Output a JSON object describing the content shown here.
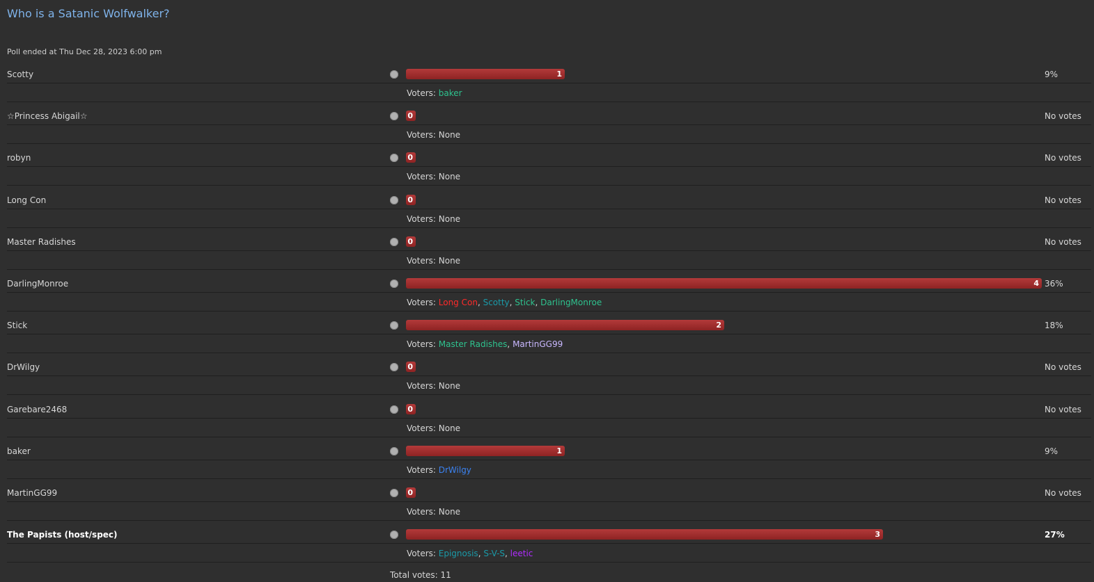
{
  "poll": {
    "title": "Who is a Satanic Wolfwalker?",
    "ended": "Poll ended at Thu Dec 28, 2023 6:00 pm",
    "voters_label": "Voters: ",
    "none_label": "None",
    "total": "Total votes: 11",
    "max_votes": 4,
    "bar_color": "#a12f2f",
    "options": [
      {
        "name": "Scotty",
        "votes": 1,
        "count": "1",
        "pct": "9%",
        "bold": false,
        "voters": [
          {
            "name": "baker",
            "color": "#2ec28e"
          }
        ]
      },
      {
        "name": "☆Princess Abigail☆",
        "votes": 0,
        "count": "0",
        "pct": "No votes",
        "bold": false,
        "voters": []
      },
      {
        "name": "robyn",
        "votes": 0,
        "count": "0",
        "pct": "No votes",
        "bold": false,
        "voters": []
      },
      {
        "name": "Long Con",
        "votes": 0,
        "count": "0",
        "pct": "No votes",
        "bold": false,
        "voters": []
      },
      {
        "name": "Master Radishes",
        "votes": 0,
        "count": "0",
        "pct": "No votes",
        "bold": false,
        "voters": []
      },
      {
        "name": "DarlingMonroe",
        "votes": 4,
        "count": "4",
        "pct": "36%",
        "bold": false,
        "voters": [
          {
            "name": "Long Con",
            "color": "#ff2a2a"
          },
          {
            "name": "Scotty",
            "color": "#1a9aa8"
          },
          {
            "name": "Stick",
            "color": "#2ec28e"
          },
          {
            "name": "DarlingMonroe",
            "color": "#2ec28e"
          }
        ]
      },
      {
        "name": "Stick",
        "votes": 2,
        "count": "2",
        "pct": "18%",
        "bold": false,
        "voters": [
          {
            "name": "Master Radishes",
            "color": "#2ec28e"
          },
          {
            "name": "MartinGG99",
            "color": "#c9b8ff"
          }
        ]
      },
      {
        "name": "DrWilgy",
        "votes": 0,
        "count": "0",
        "pct": "No votes",
        "bold": false,
        "voters": []
      },
      {
        "name": "Garebare2468",
        "votes": 0,
        "count": "0",
        "pct": "No votes",
        "bold": false,
        "voters": []
      },
      {
        "name": "baker",
        "votes": 1,
        "count": "1",
        "pct": "9%",
        "bold": false,
        "voters": [
          {
            "name": "DrWilgy",
            "color": "#3b82f0"
          }
        ]
      },
      {
        "name": "MartinGG99",
        "votes": 0,
        "count": "0",
        "pct": "No votes",
        "bold": false,
        "voters": []
      },
      {
        "name": "The Papists (host/spec)",
        "votes": 3,
        "count": "3",
        "pct": "27%",
        "bold": true,
        "voters": [
          {
            "name": "Epignosis",
            "color": "#1a9aa8"
          },
          {
            "name": "S-V-S",
            "color": "#1a9aa8"
          },
          {
            "name": "leetic",
            "color": "#b02cff"
          }
        ]
      }
    ]
  }
}
